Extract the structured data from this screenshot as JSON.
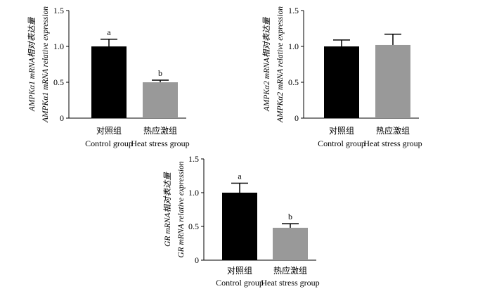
{
  "figure": {
    "background": "#ffffff"
  },
  "chart_data": [
    {
      "id": "ampka1",
      "type": "bar",
      "categories": [
        {
          "cn": "对照组",
          "en": "Control group"
        },
        {
          "cn": "热应激组",
          "en": "Heat stress group"
        }
      ],
      "values": [
        1.0,
        0.5
      ],
      "errors": [
        0.1,
        0.03
      ],
      "significance": [
        "a",
        "b"
      ],
      "colors": [
        "#000000",
        "#999999"
      ],
      "ylim": [
        0,
        1.5
      ],
      "yticks": [
        "0",
        "0.5",
        "1.0",
        "1.5"
      ],
      "ylabel_lines": [
        "AMPKα1 mRNA相对表达量",
        "AMPKα1 mRNA relative expression"
      ]
    },
    {
      "id": "ampka2",
      "type": "bar",
      "categories": [
        {
          "cn": "对照组",
          "en": "Control group"
        },
        {
          "cn": "热应激组",
          "en": "Heat stress group"
        }
      ],
      "values": [
        1.0,
        1.02
      ],
      "errors": [
        0.09,
        0.15
      ],
      "significance": [
        "",
        ""
      ],
      "colors": [
        "#000000",
        "#999999"
      ],
      "ylim": [
        0,
        1.5
      ],
      "yticks": [
        "0",
        "0.5",
        "1.0",
        "1.5"
      ],
      "ylabel_lines": [
        "AMPKα2 mRNA相对表达量",
        "AMPKα2 mRNA relative expression"
      ]
    },
    {
      "id": "gr",
      "type": "bar",
      "categories": [
        {
          "cn": "对照组",
          "en": "Control group"
        },
        {
          "cn": "热应激组",
          "en": "Heat stress group"
        }
      ],
      "values": [
        1.0,
        0.48
      ],
      "errors": [
        0.14,
        0.06
      ],
      "significance": [
        "a",
        "b"
      ],
      "colors": [
        "#000000",
        "#999999"
      ],
      "ylim": [
        0,
        1.5
      ],
      "yticks": [
        "0",
        "0.5",
        "1.0",
        "1.5"
      ],
      "ylabel_lines": [
        "GR mRNA相对表达量",
        "GR mRNA relative expression"
      ]
    }
  ]
}
